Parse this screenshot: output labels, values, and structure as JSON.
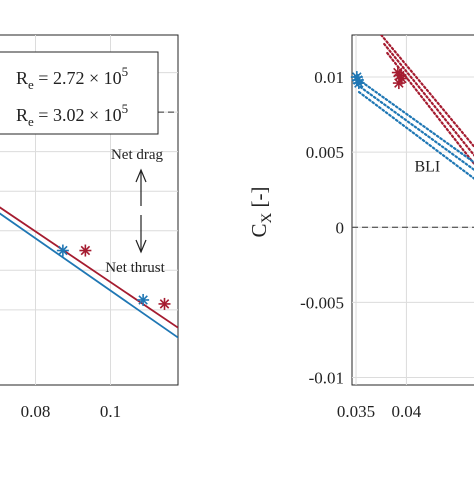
{
  "colors": {
    "blue": "#1f77b4",
    "red": "#a51c30",
    "axis": "#262626"
  },
  "chart_data": [
    {
      "type": "line",
      "xlim": [
        0.07,
        0.118
      ],
      "ylim": [
        -0.0138,
        0.0039
      ],
      "xticks": [
        0.08,
        0.1
      ],
      "xtick_labels": [
        "0.08",
        "0.1"
      ],
      "yticks": [
        0.002,
        0,
        -0.002,
        -0.004,
        -0.006,
        -0.008,
        -0.01
      ],
      "grid": true,
      "legend": {
        "position": "top-left",
        "entries": [
          {
            "base": "R",
            "sub": "e",
            "text": " = 2.72 × 10",
            "sup": "5"
          },
          {
            "base": "R",
            "sub": "e",
            "text": " = 3.02 × 10",
            "sup": "5"
          }
        ]
      },
      "reference_line": {
        "y": 0,
        "style": "dashed"
      },
      "annotations": [
        {
          "text": "Net drag",
          "arrow": "up"
        },
        {
          "text": "Net thrust",
          "arrow": "down"
        }
      ],
      "series": [
        {
          "color": "red",
          "x": [
            0.068,
            0.118
          ],
          "y": [
            -0.0045,
            -0.0109
          ]
        },
        {
          "color": "blue",
          "x": [
            0.068,
            0.118
          ],
          "y": [
            -0.0048,
            -0.0114
          ]
        }
      ],
      "markers": [
        {
          "color": "blue",
          "x": 0.0873,
          "y": -0.007
        },
        {
          "color": "red",
          "x": 0.0933,
          "y": -0.007
        },
        {
          "color": "blue",
          "x": 0.1087,
          "y": -0.0095
        },
        {
          "color": "red",
          "x": 0.1144,
          "y": -0.0097
        }
      ]
    },
    {
      "type": "line",
      "ylabel": "C",
      "ylabel_sub": "X",
      "ylabel_suffix": " [-]",
      "xlim": [
        0.0346,
        0.0475
      ],
      "ylim": [
        -0.0105,
        0.0128
      ],
      "xticks": [
        0.035,
        0.04
      ],
      "xtick_labels": [
        "0.035",
        "0.04"
      ],
      "extra_xtick_fragment": "0",
      "yticks": [
        0.01,
        0.005,
        0,
        -0.005,
        -0.01
      ],
      "ytick_labels": [
        "0.01",
        "0.005",
        "0",
        "-0.005",
        "-0.01"
      ],
      "grid": true,
      "reference_line": {
        "y": 0,
        "style": "dashed"
      },
      "annotations": [
        {
          "text": "BLI",
          "color": "blue",
          "x": 0.0408,
          "y": 0.0037
        }
      ],
      "series": [
        {
          "color": "red",
          "style": "dotted",
          "x": [
            0.0375,
            0.0478
          ],
          "y": [
            0.0128,
            0.0045
          ]
        },
        {
          "color": "red",
          "style": "dotted",
          "x": [
            0.0378,
            0.0478
          ],
          "y": [
            0.0122,
            0.0039
          ]
        },
        {
          "color": "red",
          "style": "dotted",
          "x": [
            0.0381,
            0.0478
          ],
          "y": [
            0.0116,
            0.0033
          ]
        },
        {
          "color": "blue",
          "style": "dotted",
          "x": [
            0.0349,
            0.0478
          ],
          "y": [
            0.01,
            0.0038
          ]
        },
        {
          "color": "blue",
          "style": "dotted",
          "x": [
            0.0351,
            0.0478
          ],
          "y": [
            0.0095,
            0.0033
          ]
        },
        {
          "color": "blue",
          "style": "dotted",
          "x": [
            0.0353,
            0.0478
          ],
          "y": [
            0.009,
            0.0027
          ]
        }
      ],
      "markers": [
        {
          "color": "blue",
          "x": 0.03508,
          "y": 0.01
        },
        {
          "color": "blue",
          "x": 0.03518,
          "y": 0.0098
        },
        {
          "color": "blue",
          "x": 0.03528,
          "y": 0.0096
        },
        {
          "color": "red",
          "x": 0.03915,
          "y": 0.0103
        },
        {
          "color": "red",
          "x": 0.03935,
          "y": 0.0101
        },
        {
          "color": "red",
          "x": 0.03955,
          "y": 0.0099
        },
        {
          "color": "red",
          "x": 0.03925,
          "y": 0.0096
        }
      ]
    }
  ]
}
